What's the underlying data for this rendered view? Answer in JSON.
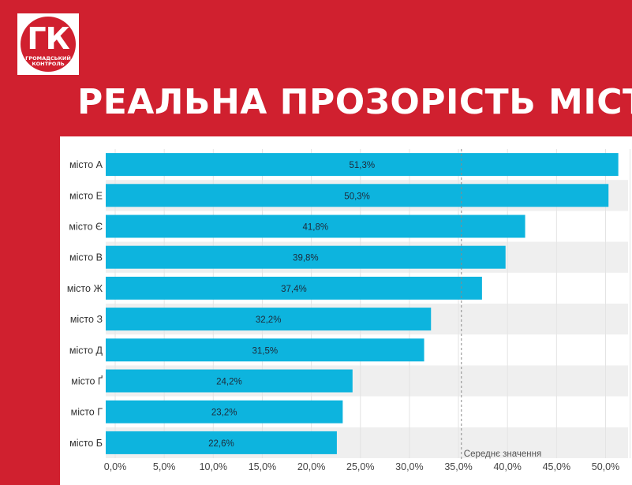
{
  "logo": {
    "letters": "ГК",
    "subtitle_line1": "ГРОМАДСЬКИЙ",
    "subtitle_line2": "КОНТРОЛЬ"
  },
  "page_title": "РЕАЛЬНА ПРОЗОРІСТЬ МІСТ",
  "chart_data": {
    "type": "bar",
    "orientation": "horizontal",
    "categories": [
      "місто А",
      "місто Е",
      "місто Є",
      "місто В",
      "місто Ж",
      "місто З",
      "місто Д",
      "місто Ґ",
      "місто Г",
      "місто Б"
    ],
    "values": [
      51.3,
      50.3,
      41.8,
      39.8,
      37.4,
      32.2,
      31.5,
      24.2,
      23.2,
      22.6
    ],
    "data_labels": [
      "51,3%",
      "50,3%",
      "41,8%",
      "39,8%",
      "37,4%",
      "32,2%",
      "31,5%",
      "24,2%",
      "23,2%",
      "22,6%"
    ],
    "x_ticks": [
      0,
      5,
      10,
      15,
      20,
      25,
      30,
      35,
      40,
      45,
      50
    ],
    "x_tick_labels": [
      "0,0%",
      "5,0%",
      "10,0%",
      "15,0%",
      "20,0%",
      "25,0%",
      "30,0%",
      "35,0%",
      "40,0%",
      "45,0%",
      "50,0%"
    ],
    "xlim": [
      0,
      53
    ],
    "reference_line": {
      "value": 35.3,
      "label": "Середнє значення",
      "style": "dashed"
    },
    "bar_color": "#0db4de",
    "stripe_color": "#efefef",
    "grid": true,
    "legend": "none"
  }
}
